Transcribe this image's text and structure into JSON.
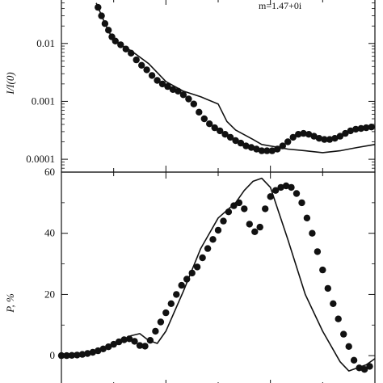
{
  "chart_data": [
    {
      "type": "line",
      "ylabel": "I/I(0)",
      "yscale": "log",
      "ylim": [
        6e-05,
        0.06
      ],
      "xlim": [
        0,
        180
      ],
      "yticks": [
        {
          "value": 0.01,
          "label": "0.01"
        },
        {
          "value": 0.001,
          "label": "0.001"
        },
        {
          "value": 0.0001,
          "label": "0.0001"
        }
      ],
      "annotation": "m=1.47+0i",
      "grid": false,
      "series": [
        {
          "style": "line",
          "x": [
            20,
            25,
            30,
            40,
            50,
            60,
            70,
            80,
            90,
            95,
            100,
            110,
            115,
            125,
            130,
            140,
            150,
            160,
            165,
            170,
            180
          ],
          "y": [
            0.05,
            0.022,
            0.011,
            0.0075,
            0.0045,
            0.0022,
            0.0015,
            0.0012,
            0.0009,
            0.00045,
            0.00032,
            0.00022,
            0.00018,
            0.00016,
            0.00015,
            0.00014,
            0.00013,
            0.00014,
            0.00015,
            0.00016,
            0.00018
          ]
        },
        {
          "style": "dots",
          "x": [
            21,
            23,
            25,
            27,
            29,
            31,
            34,
            37,
            40,
            43,
            46,
            49,
            52,
            55,
            58,
            61,
            64,
            67,
            70,
            73,
            76,
            79,
            82,
            85,
            88,
            91,
            94,
            97,
            100,
            103,
            106,
            109,
            112,
            115,
            118,
            121,
            124,
            127,
            130,
            133,
            136,
            139,
            142,
            145,
            148,
            151,
            154,
            157,
            160,
            163,
            166,
            169,
            172,
            175,
            178
          ],
          "y": [
            0.042,
            0.03,
            0.022,
            0.017,
            0.013,
            0.011,
            0.0095,
            0.008,
            0.0068,
            0.0052,
            0.0042,
            0.0035,
            0.0028,
            0.0023,
            0.002,
            0.0018,
            0.0016,
            0.0015,
            0.0013,
            0.0011,
            0.0009,
            0.00065,
            0.0005,
            0.00041,
            0.00035,
            0.00031,
            0.00027,
            0.00024,
            0.00021,
            0.00019,
            0.00017,
            0.00016,
            0.00015,
            0.00014,
            0.00014,
            0.00014,
            0.00015,
            0.00017,
            0.0002,
            0.00024,
            0.00027,
            0.00028,
            0.00027,
            0.00025,
            0.00023,
            0.00022,
            0.00022,
            0.00023,
            0.00025,
            0.00028,
            0.00031,
            0.00033,
            0.00034,
            0.00035,
            0.00036
          ]
        }
      ]
    },
    {
      "type": "line",
      "ylabel": "P, %",
      "ylim": [
        -10,
        60
      ],
      "xlim": [
        0,
        180
      ],
      "yticks": [
        {
          "value": 0,
          "label": "0"
        },
        {
          "value": 20,
          "label": "20"
        },
        {
          "value": 40,
          "label": "40"
        },
        {
          "value": 60,
          "label": "60"
        }
      ],
      "grid": false,
      "series": [
        {
          "style": "line",
          "x": [
            0,
            10,
            20,
            30,
            40,
            45,
            50,
            55,
            60,
            70,
            80,
            90,
            100,
            105,
            110,
            115,
            120,
            130,
            140,
            150,
            160,
            165,
            170,
            175,
            180
          ],
          "y": [
            0,
            0.3,
            1.3,
            3.2,
            6.5,
            7.2,
            5,
            4,
            8,
            21,
            35,
            45,
            50,
            54,
            57,
            58,
            55,
            38,
            20,
            8,
            -2,
            -5,
            -4,
            -3,
            -1
          ]
        },
        {
          "style": "dots",
          "x": [
            0,
            3,
            6,
            9,
            12,
            15,
            18,
            21,
            24,
            27,
            30,
            33,
            36,
            39,
            42,
            45,
            48,
            51,
            54,
            57,
            60,
            63,
            66,
            69,
            72,
            75,
            78,
            81,
            84,
            87,
            90,
            93,
            96,
            99,
            102,
            105,
            108,
            111,
            114,
            117,
            120,
            123,
            126,
            129,
            132,
            135,
            138,
            141,
            144,
            147,
            150,
            153,
            156,
            159,
            162,
            165,
            168,
            171,
            174,
            177
          ],
          "y": [
            0,
            0,
            0.1,
            0.2,
            0.4,
            0.7,
            1.1,
            1.6,
            2.2,
            2.9,
            3.7,
            4.5,
            5.2,
            5.5,
            4.7,
            3.3,
            3.1,
            5,
            8,
            11,
            14,
            17,
            20,
            23,
            25,
            27,
            29,
            32,
            35,
            38,
            41,
            44,
            47,
            49,
            50,
            48,
            43,
            40.5,
            42,
            48,
            52,
            54,
            55,
            55.5,
            55,
            53,
            50,
            45,
            40,
            34,
            28,
            22,
            17,
            12,
            7,
            3,
            -1.5,
            -4,
            -4.5,
            -3.5
          ]
        }
      ]
    }
  ]
}
